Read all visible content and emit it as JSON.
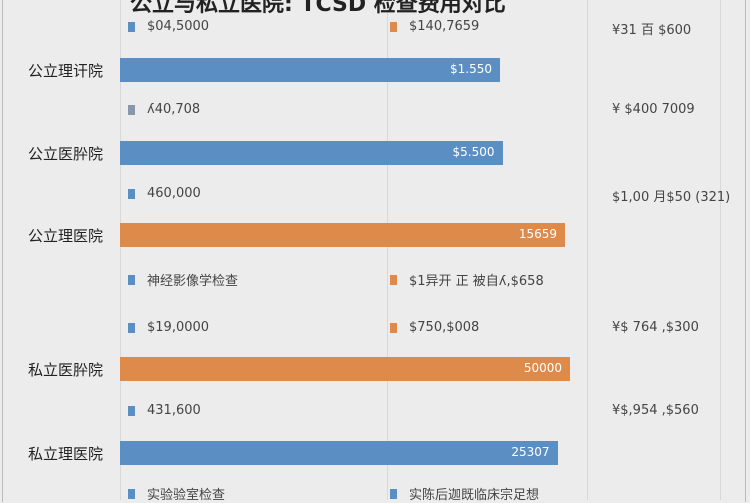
{
  "colors": {
    "blue": "#5b8fc4",
    "orange": "#de8a4a"
  },
  "chart_data": {
    "type": "bar",
    "orientation": "horizontal",
    "title": "公立与私立医院: TCSD 检查费用对比",
    "categories": [
      "公立理讦院",
      "公立医肸院",
      "公立理医院",
      "私立医肸院",
      "私立理医院"
    ],
    "bars": [
      {
        "category": "公立理讦院",
        "label": "$1.550",
        "relative_value": 0.76,
        "color": "blue"
      },
      {
        "category": "公立医肸院",
        "label": "$5.500",
        "relative_value": 0.765,
        "color": "blue"
      },
      {
        "category": "公立理医院",
        "label": "15659",
        "relative_value": 0.89,
        "color": "orange"
      },
      {
        "category": "私立医肸院",
        "label": "50000",
        "relative_value": 0.9,
        "color": "orange"
      },
      {
        "category": "私立理医院",
        "label": "25307",
        "relative_value": 0.875,
        "color": "blue"
      }
    ],
    "annotation_rows": [
      {
        "a": "$04,5000",
        "a_color": "blue",
        "b": "$140,7659",
        "b_color": "orange",
        "c": "¥31 百 $600"
      },
      {
        "a": "ʎ40,708",
        "a_color": "gray",
        "b": "",
        "b_color": "",
        "c": "¥ $400 7009"
      },
      {
        "a": "460,000",
        "a_color": "blue",
        "b": "",
        "b_color": "",
        "c": "$1,00 月$50 (321)"
      },
      {
        "a": "神经影像学检查",
        "a_color": "blue",
        "b": "$1异开 正 被自ʎ,$658",
        "b_color": "orange",
        "c": ""
      },
      {
        "a": "$19,0000",
        "a_color": "blue",
        "b": "$750,$008",
        "b_color": "orange",
        "c": "¥$ 764 ,$300"
      },
      {
        "a": "431,600",
        "a_color": "blue",
        "b": "",
        "b_color": "",
        "c": "¥$,954 ,$560"
      },
      {
        "a": "实验验室检查",
        "a_color": "blue",
        "b": "实陈后迦既临床宗足想",
        "b_color": "blue",
        "c": ""
      }
    ]
  }
}
